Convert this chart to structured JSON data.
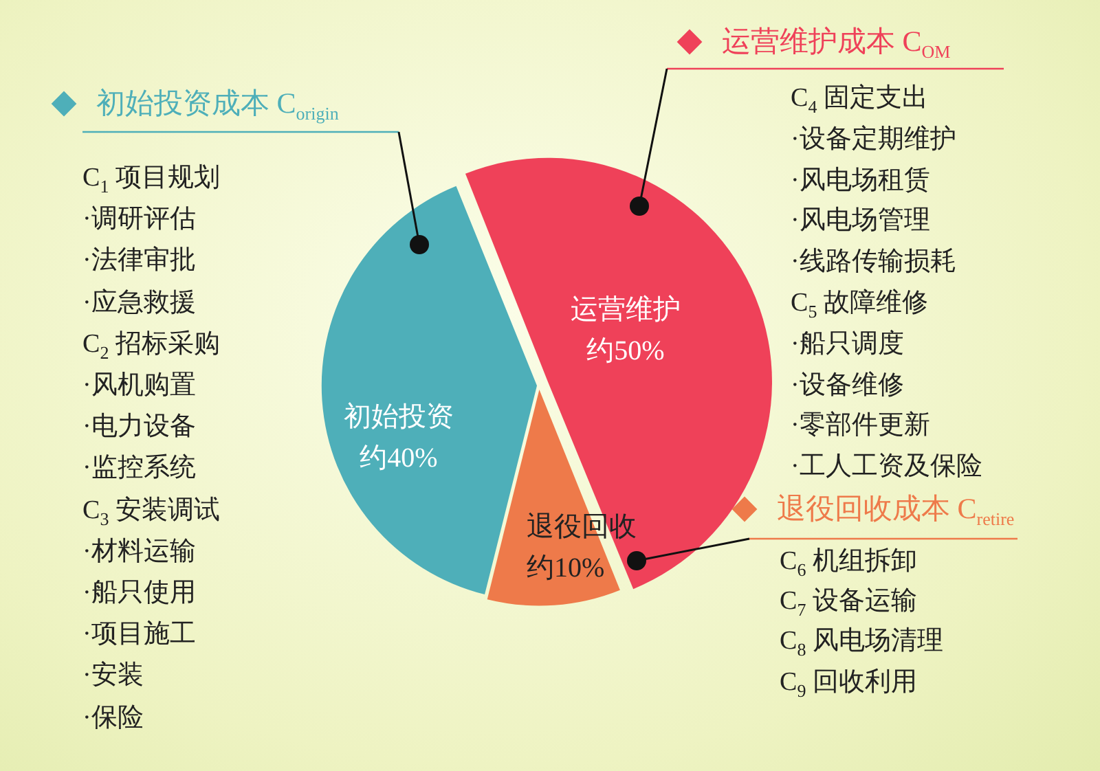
{
  "chart_data": {
    "type": "pie",
    "categories": [
      "初始投资",
      "运营维护",
      "退役回收"
    ],
    "values": [
      40,
      50,
      10
    ],
    "colors": [
      "#4eafb9",
      "#ef4159",
      "#ee7a4a"
    ],
    "value_labels": [
      "约40%",
      "约50%",
      "约10%"
    ],
    "legend": false,
    "annotations": [
      "初始投资成本 C$_{origin}$",
      "C$_{1}$ 项目规划",
      "·调研评估",
      "·法律审批",
      "·应急救援",
      "C$_{2}$ 招标采购",
      "·风机购置",
      "·电力设备",
      "·监控系统",
      "C$_{3}$ 安装调试",
      "·材料运输",
      "·船只使用",
      "·项目施工",
      "·安装",
      "·保险",
      "运营维护成本 C$_{OM}$",
      "C$_{4}$ 固定支出",
      "·设备定期维护",
      "·风电场租赁",
      "·风电场管理",
      "·线路传输损耗",
      "C$_{5}$ 故障维修",
      "·船只调度",
      "·设备维修",
      "·零部件更新",
      "·工人工资及保险",
      "退役回收成本 C$_{retire}$",
      "C$_{6}$ 机组拆卸",
      "C$_{7}$ 设备运输",
      "C$_{8}$ 风电场清理",
      "C$_{9}$ 回收利用"
    ]
  }
}
